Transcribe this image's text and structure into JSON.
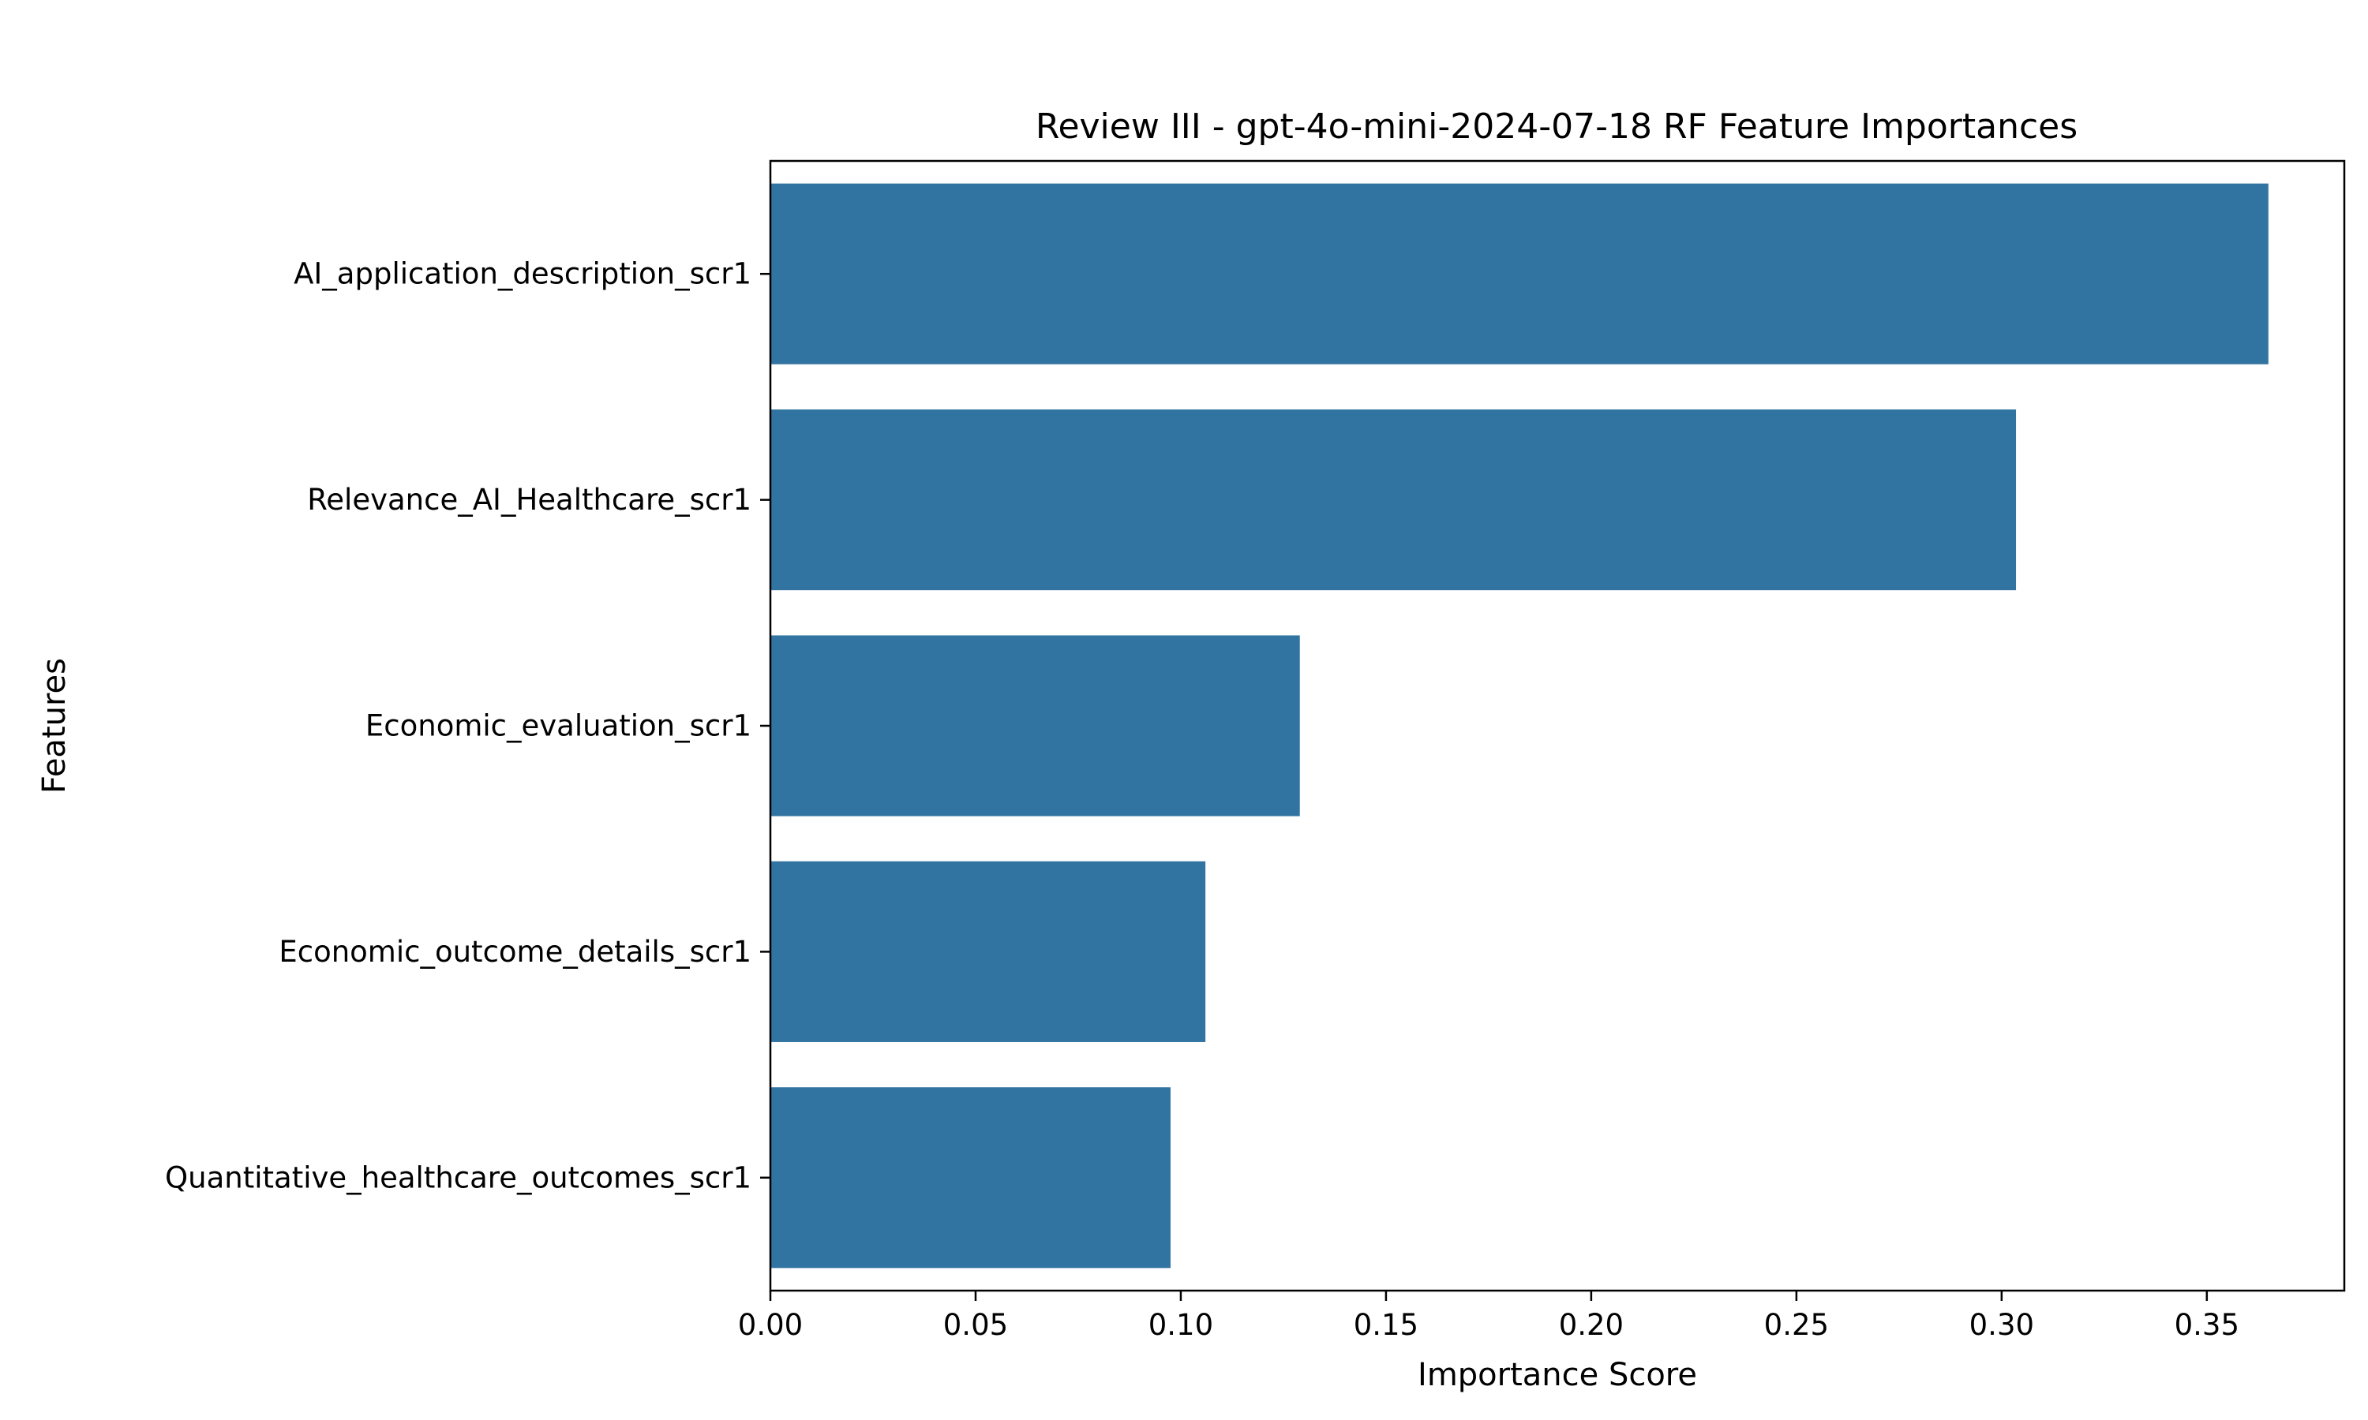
{
  "chart_data": {
    "type": "bar",
    "orientation": "horizontal",
    "title": "Review III - gpt-4o-mini-2024-07-18 RF Feature Importances",
    "xlabel": "Importance Score",
    "ylabel": "Features",
    "categories": [
      "AI_application_description_scr1",
      "Relevance_AI_Healthcare_scr1",
      "Economic_evaluation_scr1",
      "Economic_outcome_details_scr1",
      "Quantitative_healthcare_outcomes_scr1"
    ],
    "values": [
      0.365,
      0.3035,
      0.129,
      0.106,
      0.0975
    ],
    "xlim": [
      0,
      0.3835
    ],
    "xticks": [
      0.0,
      0.05,
      0.1,
      0.15,
      0.2,
      0.25,
      0.3,
      0.35
    ],
    "xtick_labels": [
      "0.00",
      "0.05",
      "0.10",
      "0.15",
      "0.20",
      "0.25",
      "0.30",
      "0.35"
    ],
    "bar_color": "#3274a1",
    "grid": false,
    "legend": "none"
  }
}
